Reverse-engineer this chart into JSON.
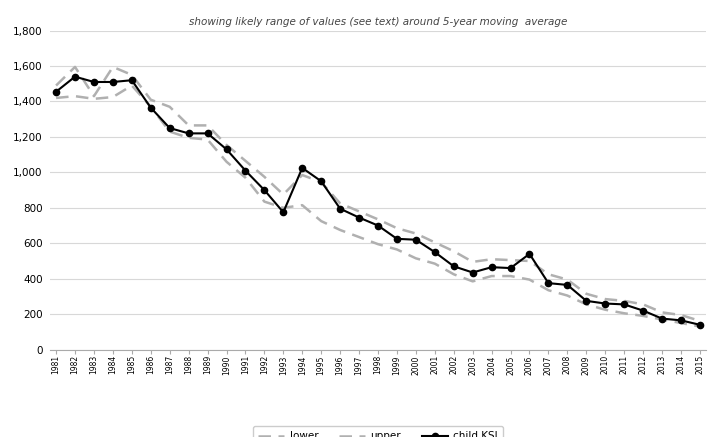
{
  "years": [
    1981,
    1982,
    1983,
    1984,
    1985,
    1986,
    1987,
    1988,
    1989,
    1990,
    1991,
    1992,
    1993,
    1994,
    1995,
    1996,
    1997,
    1998,
    1999,
    2000,
    2001,
    2002,
    2003,
    2004,
    2005,
    2006,
    2007,
    2008,
    2009,
    2010,
    2011,
    2012,
    2013,
    2014,
    2015
  ],
  "child_ksi": [
    1455,
    1540,
    1510,
    1510,
    1520,
    1365,
    1250,
    1220,
    1220,
    1130,
    1010,
    900,
    775,
    1025,
    950,
    795,
    745,
    700,
    625,
    620,
    550,
    470,
    435,
    465,
    460,
    540,
    375,
    365,
    275,
    260,
    255,
    220,
    175,
    165,
    140
  ],
  "lower": [
    1420,
    1430,
    1415,
    1425,
    1490,
    1370,
    1230,
    1195,
    1185,
    1060,
    970,
    835,
    800,
    815,
    725,
    675,
    635,
    595,
    565,
    515,
    485,
    425,
    385,
    415,
    415,
    395,
    335,
    305,
    255,
    225,
    205,
    190,
    170,
    150,
    130
  ],
  "upper": [
    1490,
    1595,
    1430,
    1595,
    1550,
    1410,
    1370,
    1265,
    1265,
    1155,
    1065,
    975,
    875,
    985,
    945,
    825,
    780,
    735,
    685,
    655,
    605,
    555,
    495,
    510,
    505,
    500,
    425,
    395,
    315,
    285,
    275,
    255,
    210,
    195,
    162
  ],
  "subtitle": "showing likely range of values (see text) around 5-year moving  average",
  "ylim": [
    0,
    1800
  ],
  "yticks": [
    0,
    200,
    400,
    600,
    800,
    1000,
    1200,
    1400,
    1600,
    1800
  ],
  "ytick_labels": [
    "0",
    "200",
    "400",
    "600",
    "800",
    "1,000",
    "1,200",
    "1,400",
    "1,600",
    "1,800"
  ],
  "line_color": "#000000",
  "dash_color": "#b0b0b0",
  "bg_color": "#ffffff",
  "grid_color": "#d8d8d8"
}
